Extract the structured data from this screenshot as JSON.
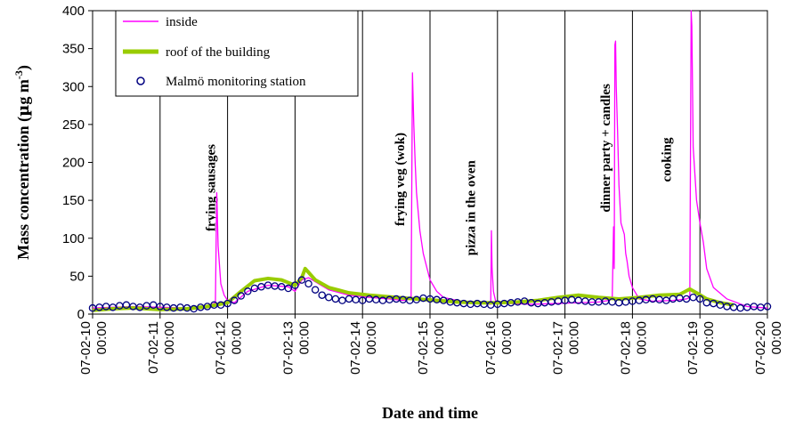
{
  "chart_data": {
    "type": "line",
    "xlabel": "Date and time",
    "ylabel_main": "Mass concentration (",
    "ylabel_mu": "µ",
    "ylabel_unit": "g m",
    "ylabel_exp": "-3",
    "ylabel_close": ")",
    "ylim": [
      0,
      400
    ],
    "yticks": [
      "0",
      "50",
      "100",
      "150",
      "200",
      "250",
      "300",
      "350",
      "400"
    ],
    "xlim": [
      0,
      10
    ],
    "xtick_dates": [
      "07-02-10",
      "07-02-11",
      "07-02-12",
      "07-02-13",
      "07-02-14",
      "07-02-15",
      "07-02-16",
      "07-02-17",
      "07-02-18",
      "07-02-19",
      "07-02-20"
    ],
    "xtick_time": "00:00",
    "legend_position": "top-left",
    "colors": {
      "inside": "#ff00ff",
      "roof": "#99cc00",
      "station": "#000080"
    },
    "annotations": [
      {
        "text": "frying sausages",
        "at": 1.75,
        "baseline": 115
      },
      {
        "text": "frying veg (wok)",
        "at": 4.55,
        "baseline": 122
      },
      {
        "text": "pizza in the oven",
        "at": 5.6,
        "baseline": 83
      },
      {
        "text": "dinner party + candles",
        "at": 7.6,
        "baseline": 140
      },
      {
        "text": "cooking",
        "at": 8.5,
        "baseline": 180
      }
    ],
    "series": [
      {
        "name": "inside",
        "x": [
          0,
          0.3,
          0.6,
          1.0,
          1.4,
          1.7,
          1.82,
          1.84,
          1.86,
          1.9,
          1.95,
          2.0,
          2.1,
          2.3,
          2.6,
          2.9,
          3.0,
          3.1,
          3.2,
          3.35,
          3.5,
          3.8,
          4.1,
          4.4,
          4.6,
          4.72,
          4.74,
          4.76,
          4.78,
          4.8,
          4.85,
          4.9,
          5.0,
          5.1,
          5.2,
          5.4,
          5.7,
          5.9,
          5.91,
          5.92,
          5.94,
          5.97,
          6.0,
          6.2,
          6.5,
          6.9,
          7.2,
          7.5,
          7.65,
          7.7,
          7.72,
          7.73,
          7.74,
          7.75,
          7.76,
          7.78,
          7.8,
          7.83,
          7.88,
          7.9,
          7.92,
          7.95,
          8.0,
          8.1,
          8.3,
          8.6,
          8.8,
          8.85,
          8.87,
          8.88,
          8.89,
          8.9,
          8.95,
          9.0,
          9.05,
          9.1,
          9.2,
          9.4,
          9.7,
          10.0
        ],
        "y": [
          8,
          9,
          10,
          9,
          8,
          10,
          15,
          160,
          90,
          40,
          25,
          18,
          15,
          30,
          38,
          36,
          30,
          45,
          48,
          40,
          32,
          25,
          22,
          20,
          18,
          20,
          318,
          250,
          200,
          160,
          110,
          80,
          45,
          30,
          22,
          18,
          15,
          13,
          110,
          60,
          30,
          18,
          15,
          14,
          13,
          14,
          15,
          16,
          18,
          20,
          115,
          60,
          355,
          360,
          300,
          240,
          170,
          120,
          105,
          80,
          70,
          50,
          35,
          20,
          17,
          18,
          20,
          22,
          400,
          380,
          300,
          220,
          150,
          120,
          95,
          60,
          35,
          20,
          10,
          8
        ]
      },
      {
        "name": "roof of the building",
        "x": [
          0,
          0.3,
          0.6,
          1.0,
          1.4,
          1.7,
          2.0,
          2.2,
          2.4,
          2.6,
          2.8,
          3.0,
          3.1,
          3.15,
          3.2,
          3.3,
          3.5,
          3.8,
          4.1,
          4.5,
          4.8,
          5.1,
          5.4,
          5.7,
          6.0,
          6.3,
          6.6,
          6.9,
          7.2,
          7.5,
          7.8,
          8.1,
          8.4,
          8.7,
          8.85,
          8.95,
          9.1,
          9.3,
          9.5
        ],
        "y": [
          5,
          7,
          8,
          6,
          7,
          10,
          15,
          30,
          44,
          47,
          45,
          38,
          48,
          60,
          55,
          45,
          35,
          28,
          25,
          22,
          20,
          18,
          16,
          15,
          15,
          16,
          18,
          22,
          25,
          22,
          20,
          22,
          25,
          26,
          33,
          28,
          20,
          15,
          12
        ]
      },
      {
        "name": "Malmö monitoring station",
        "x": [
          0,
          0.1,
          0.2,
          0.3,
          0.4,
          0.5,
          0.6,
          0.7,
          0.8,
          0.9,
          1.0,
          1.1,
          1.2,
          1.3,
          1.4,
          1.5,
          1.6,
          1.7,
          1.8,
          1.9,
          2.0,
          2.1,
          2.2,
          2.3,
          2.4,
          2.5,
          2.6,
          2.7,
          2.8,
          2.9,
          3.0,
          3.1,
          3.2,
          3.3,
          3.4,
          3.5,
          3.6,
          3.7,
          3.8,
          3.9,
          4.0,
          4.1,
          4.2,
          4.3,
          4.4,
          4.5,
          4.6,
          4.7,
          4.8,
          4.9,
          5.0,
          5.1,
          5.2,
          5.3,
          5.4,
          5.5,
          5.6,
          5.7,
          5.8,
          5.9,
          6.0,
          6.1,
          6.2,
          6.3,
          6.4,
          6.5,
          6.6,
          6.7,
          6.8,
          6.9,
          7.0,
          7.1,
          7.2,
          7.3,
          7.4,
          7.5,
          7.6,
          7.7,
          7.8,
          7.9,
          8.0,
          8.1,
          8.2,
          8.3,
          8.4,
          8.5,
          8.6,
          8.7,
          8.8,
          8.9,
          9.0,
          9.1,
          9.2,
          9.3,
          9.4,
          9.5,
          9.6,
          9.7,
          9.8,
          9.9,
          10.0
        ],
        "y": [
          8,
          9,
          10,
          9,
          11,
          12,
          10,
          9,
          11,
          12,
          10,
          9,
          8,
          9,
          8,
          7,
          9,
          10,
          12,
          12,
          14,
          18,
          24,
          30,
          34,
          36,
          38,
          37,
          36,
          34,
          38,
          45,
          40,
          32,
          25,
          22,
          20,
          18,
          20,
          19,
          18,
          20,
          19,
          18,
          19,
          20,
          19,
          18,
          19,
          21,
          20,
          19,
          18,
          16,
          15,
          14,
          13,
          14,
          13,
          12,
          13,
          14,
          15,
          16,
          17,
          15,
          14,
          15,
          16,
          17,
          18,
          19,
          18,
          17,
          16,
          16,
          17,
          16,
          15,
          16,
          17,
          18,
          19,
          20,
          19,
          18,
          20,
          21,
          20,
          22,
          20,
          15,
          14,
          12,
          10,
          9,
          8,
          9,
          10,
          9,
          10
        ]
      }
    ]
  }
}
